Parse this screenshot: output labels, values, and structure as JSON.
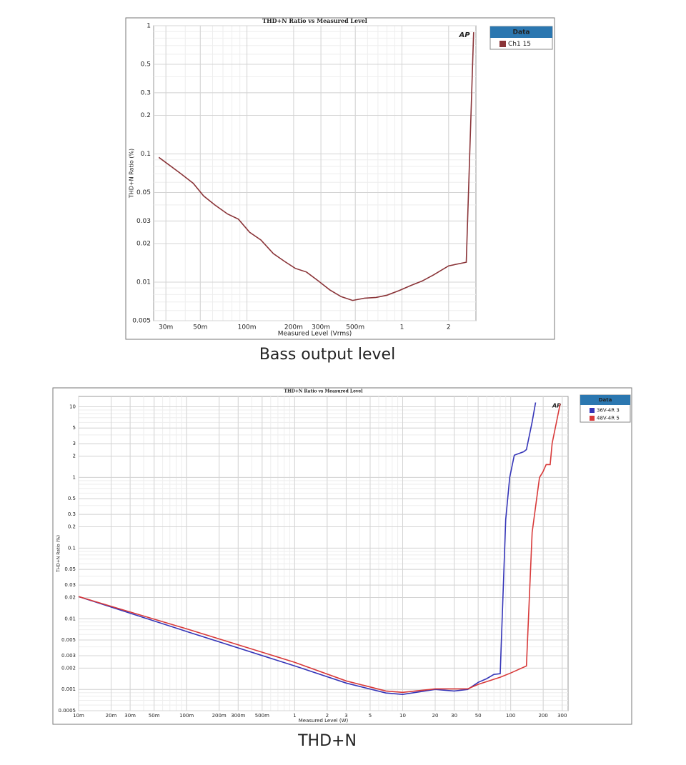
{
  "chart_data": [
    {
      "type": "line",
      "title": "THD+N Ratio vs Measured Level",
      "caption": "Bass output level",
      "x_label": "Measured Level (Vrms)",
      "y_label": "THD+N Ratio (%)",
      "legend_title": "Data",
      "logo": "AP",
      "log_x": true,
      "log_y": true,
      "grid": true,
      "xlim": [
        0.025,
        3
      ],
      "ylim": [
        0.005,
        1
      ],
      "xticks": [
        {
          "value": 0.03,
          "label": "30m"
        },
        {
          "value": 0.05,
          "label": "50m"
        },
        {
          "value": 0.1,
          "label": "100m"
        },
        {
          "value": 0.2,
          "label": "200m"
        },
        {
          "value": 0.3,
          "label": "300m"
        },
        {
          "value": 0.5,
          "label": "500m"
        },
        1,
        2
      ],
      "yticks": [
        1,
        0.5,
        0.3,
        0.2,
        0.1,
        0.05,
        0.03,
        0.02,
        0.01,
        0.005
      ],
      "series": [
        {
          "name": "Ch1 15",
          "color": "#8a3438",
          "x": [
            0.027,
            0.037,
            0.045,
            0.0525,
            0.062,
            0.075,
            0.088,
            0.104,
            0.123,
            0.148,
            0.175,
            0.205,
            0.242,
            0.289,
            0.342,
            0.405,
            0.48,
            0.575,
            0.68,
            0.8,
            0.96,
            1.14,
            1.35,
            1.6,
            2,
            2.6,
            2.9
          ],
          "values": [
            0.094,
            0.071,
            0.059,
            0.047,
            0.04,
            0.034,
            0.031,
            0.0245,
            0.0213,
            0.0167,
            0.0145,
            0.0128,
            0.012,
            0.0102,
            0.0087,
            0.0077,
            0.0072,
            0.0075,
            0.0076,
            0.0079,
            0.0086,
            0.0094,
            0.0102,
            0.0114,
            0.0134,
            0.0143,
            0.89
          ]
        }
      ]
    },
    {
      "type": "line",
      "title": "THD+N Ratio vs Measured Level",
      "caption": "THD+N",
      "x_label": "Measured Level (W)",
      "y_label": "THD+N Ratio (%)",
      "legend_title": "Data",
      "logo": "AP",
      "log_x": true,
      "log_y": true,
      "grid": true,
      "xlim": [
        0.01,
        340
      ],
      "ylim": [
        0.0005,
        14
      ],
      "xticks": [
        {
          "value": 0.01,
          "label": "10m"
        },
        {
          "value": 0.02,
          "label": "20m"
        },
        {
          "value": 0.03,
          "label": "30m"
        },
        {
          "value": 0.05,
          "label": "50m"
        },
        {
          "value": 0.1,
          "label": "100m"
        },
        {
          "value": 0.2,
          "label": "200m"
        },
        {
          "value": 0.3,
          "label": "300m"
        },
        {
          "value": 0.5,
          "label": "500m"
        },
        1,
        2,
        3,
        5,
        10,
        20,
        30,
        50,
        100,
        200,
        300
      ],
      "yticks": [
        10,
        5,
        3,
        2,
        1,
        0.5,
        0.3,
        0.2,
        0.1,
        0.05,
        0.03,
        0.02,
        0.01,
        0.005,
        0.003,
        0.002,
        0.001,
        0.0005
      ],
      "series": [
        {
          "name": "36V-4R 3",
          "color": "#3535b8",
          "x": [
            0.01,
            0.1,
            1,
            3,
            7,
            10,
            20,
            30,
            40,
            50,
            60,
            70,
            80,
            90,
            98,
            108,
            132,
            140,
            158,
            170
          ],
          "values": [
            0.0206,
            0.0066,
            0.00215,
            0.00123,
            0.00089,
            0.00085,
            0.001,
            0.00095,
            0.001,
            0.00126,
            0.00142,
            0.00163,
            0.00167,
            0.254,
            1.0,
            2.06,
            2.31,
            2.48,
            6.1,
            11.5
          ]
        },
        {
          "name": "48V-4R 5",
          "color": "#d83a3a",
          "x": [
            0.01,
            0.1,
            1,
            3,
            7,
            10,
            20,
            40,
            50,
            80,
            100,
            140,
            158,
            185,
            199,
            213,
            232,
            242,
            262,
            287
          ],
          "values": [
            0.0206,
            0.0072,
            0.00242,
            0.00132,
            0.00095,
            0.00091,
            0.00102,
            0.00102,
            0.00118,
            0.00149,
            0.00171,
            0.00215,
            0.167,
            1.0,
            1.2,
            1.52,
            1.52,
            3.05,
            5.5,
            11
          ]
        }
      ]
    }
  ]
}
